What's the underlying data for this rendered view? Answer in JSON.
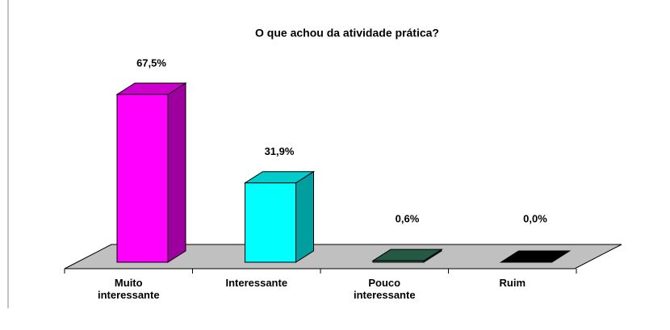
{
  "chart_data": {
    "type": "bar3d",
    "title": "O que achou da atividade prática?",
    "categories": [
      "Muito interessante",
      "Interessante",
      "Pouco interessante",
      "Ruim"
    ],
    "values": [
      67.5,
      31.9,
      0.6,
      0.0
    ],
    "value_labels": [
      "67,5%",
      "31,9%",
      "0,6%",
      "0,0%"
    ],
    "colors": [
      "#ff00ff",
      "#00ffff",
      "#2f6f55",
      "#000000"
    ]
  }
}
